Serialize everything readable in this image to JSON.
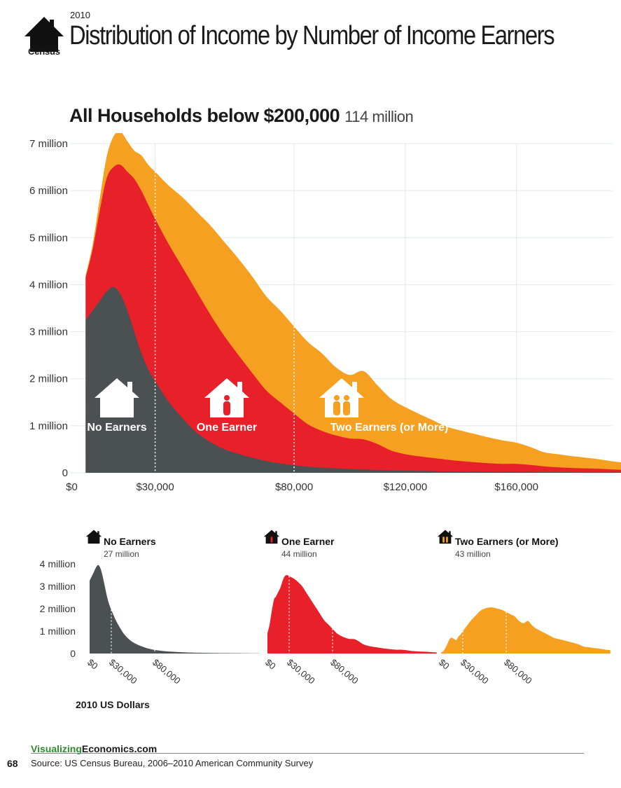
{
  "header": {
    "year": "2010",
    "title": "Distribution of Income by Number of Income Earners",
    "logo_text": "Census",
    "logo_icon": "house-icon"
  },
  "main": {
    "title": "All Households below $200,000",
    "subtitle": "114 million"
  },
  "colors": {
    "no_earners": "#4b5053",
    "one_earner": "#e8202a",
    "two_earners": "#f5a021",
    "grid": "#e3e8ec"
  },
  "chart_data": [
    {
      "type": "area",
      "stacked": true,
      "x_unit": "2010 US Dollars",
      "xlim": [
        0,
        200000
      ],
      "ylim": [
        0,
        7000000
      ],
      "x_ticks": [
        0,
        30000,
        80000,
        120000,
        160000
      ],
      "x_tick_labels": [
        "$0",
        "$30,000",
        "$80,000",
        "$120,000",
        "$160,000"
      ],
      "y_ticks": [
        0,
        1000000,
        2000000,
        3000000,
        4000000,
        5000000,
        6000000,
        7000000
      ],
      "y_tick_labels": [
        "0",
        "1 million",
        "2 million",
        "3 million",
        "4 million",
        "5 million",
        "6 million",
        "7 million"
      ],
      "reference_lines": [
        30000,
        80000
      ],
      "grid": true,
      "x": [
        5000,
        7500,
        10000,
        12500,
        15000,
        17500,
        20000,
        22500,
        25000,
        27500,
        30000,
        35000,
        40000,
        45000,
        50000,
        55000,
        60000,
        65000,
        70000,
        75000,
        80000,
        85000,
        90000,
        95000,
        100000,
        105000,
        110000,
        115000,
        120000,
        125000,
        130000,
        135000,
        140000,
        145000,
        150000,
        155000,
        160000,
        165000,
        170000,
        175000,
        180000,
        185000,
        190000,
        195000,
        200000
      ],
      "series": [
        {
          "name": "No Earners",
          "values": [
            3250000,
            3450000,
            3650000,
            3850000,
            3950000,
            3800000,
            3450000,
            3000000,
            2550000,
            2200000,
            1950000,
            1500000,
            1150000,
            850000,
            650000,
            500000,
            400000,
            320000,
            250000,
            200000,
            160000,
            130000,
            110000,
            95000,
            80000,
            70000,
            60000,
            50000,
            45000,
            40000,
            35000,
            30000,
            28000,
            25000,
            22000,
            20000,
            20000,
            18000,
            15000,
            15000,
            13000,
            12000,
            10000,
            10000,
            10000
          ]
        },
        {
          "name": "One Earner",
          "values": [
            900000,
            1300000,
            1900000,
            2400000,
            2550000,
            2750000,
            2950000,
            3250000,
            3450000,
            3500000,
            3450000,
            3350000,
            3200000,
            3000000,
            2700000,
            2400000,
            2100000,
            1800000,
            1500000,
            1300000,
            1100000,
            900000,
            780000,
            700000,
            650000,
            640000,
            550000,
            420000,
            350000,
            310000,
            280000,
            250000,
            220000,
            200000,
            180000,
            170000,
            170000,
            150000,
            120000,
            100000,
            90000,
            80000,
            75000,
            60000,
            50000
          ]
        },
        {
          "name": "Two Earners (or More)",
          "values": [
            50000,
            100000,
            250000,
            450000,
            650000,
            700000,
            650000,
            600000,
            750000,
            850000,
            1000000,
            1250000,
            1500000,
            1700000,
            1900000,
            2000000,
            2050000,
            2050000,
            2000000,
            1950000,
            1850000,
            1750000,
            1650000,
            1450000,
            1350000,
            1450000,
            1250000,
            1100000,
            1000000,
            900000,
            800000,
            700000,
            650000,
            600000,
            550000,
            500000,
            450000,
            380000,
            300000,
            280000,
            250000,
            230000,
            200000,
            170000,
            150000
          ]
        }
      ],
      "annotations": [
        {
          "label": "No Earners",
          "icon": "house-empty-icon",
          "series": "No Earners"
        },
        {
          "label": "One Earner",
          "icon": "house-one-person-icon",
          "series": "One Earner"
        },
        {
          "label": "Two Earners (or More)",
          "icon": "house-two-people-icon",
          "series": "Two Earners (or More)"
        }
      ]
    },
    {
      "type": "area",
      "small_multiple": true,
      "ylim": [
        0,
        4000000
      ],
      "y_ticks": [
        0,
        1000000,
        2000000,
        3000000,
        4000000
      ],
      "y_tick_labels": [
        "0",
        "1 million",
        "2 million",
        "3 million",
        "4 million"
      ],
      "x_tick_labels": [
        "$0",
        "$30,000",
        "$80,000"
      ],
      "x_unit_label": "2010 US Dollars",
      "panels": [
        {
          "name": "No Earners",
          "total": "27 million",
          "icon": "house-empty-icon",
          "series_ref": "No Earners"
        },
        {
          "name": "One Earner",
          "total": "44 million",
          "icon": "house-one-person-icon",
          "series_ref": "One Earner"
        },
        {
          "name": "Two Earners (or More)",
          "total": "43 million",
          "icon": "house-two-people-icon",
          "series_ref": "Two Earners (or More)"
        }
      ]
    }
  ],
  "footer": {
    "brand_green": "Visualizing",
    "brand_rest": "Economics.com",
    "page_number": "68",
    "source": "Source: US Census Bureau, 2006–2010 American Community Survey"
  }
}
